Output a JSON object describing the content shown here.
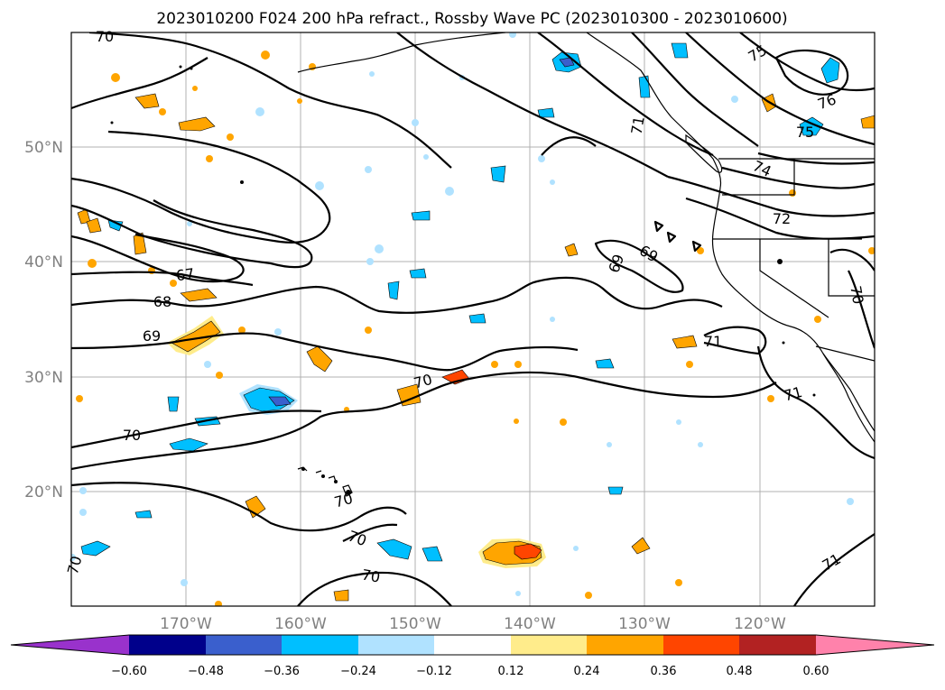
{
  "title": "2023010200 F024 200 hPa refract., Rossby Wave PC (2023010300 - 2023010600)",
  "lon_labels": [
    "170°W",
    "160°W",
    "150°W",
    "140°W",
    "130°W",
    "120°W"
  ],
  "lat_labels": [
    "50°N",
    "40°N",
    "30°N",
    "20°N"
  ],
  "contour_labels": [
    "70",
    "75",
    "76",
    "75",
    "71",
    "74",
    "72",
    "67",
    "68",
    "69",
    "69",
    "69",
    "70",
    "70",
    "70",
    "70",
    "70",
    "70",
    "71",
    "71",
    "71",
    "70"
  ],
  "colorbar": {
    "ticks": [
      "−0.60",
      "−0.48",
      "−0.36",
      "−0.24",
      "−0.12",
      "0.12",
      "0.24",
      "0.36",
      "0.48",
      "0.60"
    ],
    "colors": [
      "#9932cc",
      "#00008b",
      "#3a5fcd",
      "#00bfff",
      "#b0e2ff",
      "#ffffff",
      "#ffec8b",
      "#ffa500",
      "#ff4500",
      "#b22222",
      "#ff82ab"
    ]
  },
  "colors": {
    "neg_light": "#b0e2ff",
    "neg_mid": "#00bfff",
    "neg_dark": "#3a5fcd",
    "pos_light": "#ffec8b",
    "pos_mid": "#ffa500",
    "pos_dark": "#ff4500"
  }
}
